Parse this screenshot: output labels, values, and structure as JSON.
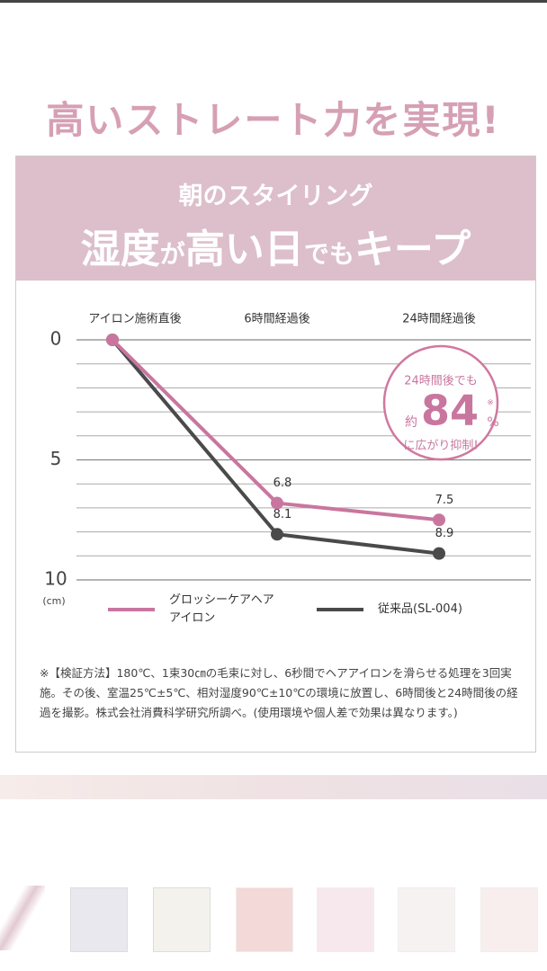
{
  "headline": "高いストレート力を実現!",
  "banner": {
    "subtitle": "朝のスタイリング",
    "title_parts": [
      "湿度",
      "が",
      "高い日",
      "でも",
      "キープ"
    ]
  },
  "chart_data": {
    "type": "line",
    "categories": [
      "アイロン施術直後",
      "6時間経過後",
      "24時間経過後"
    ],
    "series": [
      {
        "name": "グロッシーケアヘアアイロン",
        "color": "#c9769f",
        "values": [
          0,
          6.8,
          7.5
        ],
        "value_labels": [
          null,
          "6.8",
          "7.5"
        ]
      },
      {
        "name": "従来品(SL-004)",
        "color": "#4a4a4a",
        "values": [
          0,
          8.1,
          8.9
        ],
        "value_labels": [
          null,
          "8.1",
          "8.9"
        ]
      }
    ],
    "ylim": [
      0,
      10
    ],
    "yticks": [
      0,
      5,
      10
    ],
    "minor_yticks": [
      1,
      2,
      3,
      4,
      6,
      7,
      8,
      9
    ],
    "y_inverted": true,
    "grid": true,
    "y_unit": "(cm)",
    "badge": {
      "line1": "24時間後でも",
      "prefix": "約",
      "number": "84",
      "suffix": "%",
      "mark": "※",
      "line3": "に広がり抑制!"
    }
  },
  "note": "※【検証方法】180℃、1束30㎝の毛束に対し、6秒間でヘアアイロンを滑らせる処理を3回実施。その後、室温25℃±5℃、相対湿度90℃±10℃の環境に放置し、6時間後と24時間後の経過を撮影。株式会社消費科学研究所調べ。(使用環境や個人差で効果は異なります。)"
}
